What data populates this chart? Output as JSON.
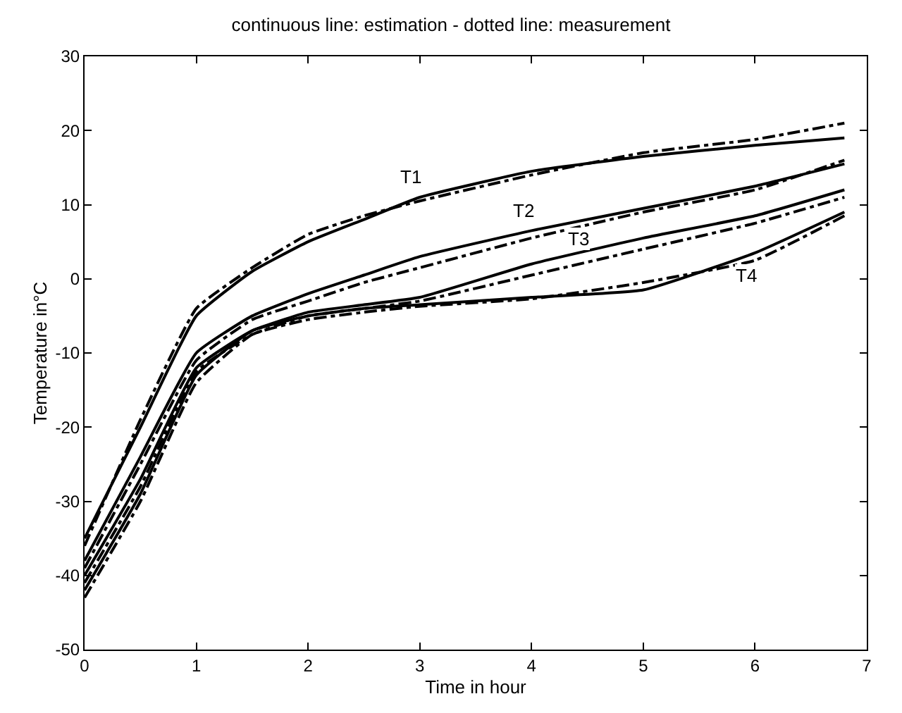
{
  "chart_data": {
    "type": "line",
    "title": "continuous line: estimation - dotted line: measurement",
    "xlabel": "Time in hour",
    "ylabel": "Temperature in°C",
    "x": [
      0,
      0.5,
      1,
      1.5,
      2,
      2.5,
      3,
      4,
      5,
      6,
      6.8
    ],
    "series": [
      {
        "name": "T1",
        "color": "#000000",
        "line_style": "solid",
        "values": [
          -35,
          -20,
          -5,
          1,
          5,
          8,
          11,
          14.5,
          16.5,
          18,
          19
        ]
      },
      {
        "color": "#000000",
        "line_style": "dotted",
        "values": [
          -36,
          -19,
          -4,
          1.5,
          6,
          8.5,
          10.5,
          14,
          17,
          18.8,
          21
        ]
      },
      {
        "name": "T2",
        "color": "#000000",
        "line_style": "solid",
        "values": [
          -38,
          -24,
          -10,
          -5,
          -2,
          0.5,
          3,
          6.5,
          9.5,
          12.5,
          15.5
        ]
      },
      {
        "color": "#000000",
        "line_style": "dotted",
        "values": [
          -39,
          -25,
          -11,
          -5.5,
          -3,
          -0.5,
          1.5,
          5.5,
          9,
          12,
          16
        ]
      },
      {
        "name": "T3",
        "color": "#000000",
        "line_style": "solid",
        "values": [
          -40,
          -27,
          -12,
          -7,
          -4.5,
          -3.5,
          -2.5,
          2,
          5.5,
          8.5,
          12
        ]
      },
      {
        "color": "#000000",
        "line_style": "dotted",
        "values": [
          -41,
          -28,
          -12.5,
          -7.5,
          -5,
          -4,
          -3,
          0.5,
          4,
          7.5,
          11
        ]
      },
      {
        "name": "T4",
        "color": "#000000",
        "line_style": "solid",
        "values": [
          -42,
          -29,
          -13,
          -7,
          -5,
          -4,
          -3.5,
          -2.5,
          -1.5,
          3.5,
          9
        ]
      },
      {
        "color": "#000000",
        "line_style": "dotted",
        "values": [
          -43,
          -30,
          -14,
          -7.5,
          -5.5,
          -4.5,
          -3.7,
          -2.7,
          -0.5,
          2.5,
          8.5
        ]
      }
    ],
    "xlim": [
      0,
      7
    ],
    "xticks": [
      0,
      1,
      2,
      3,
      4,
      5,
      6,
      7
    ],
    "ylim": [
      -50,
      30
    ],
    "yticks": [
      -50,
      -40,
      -30,
      -20,
      -10,
      0,
      10,
      20,
      30
    ],
    "grid": false,
    "legend": false,
    "marker": "none"
  }
}
